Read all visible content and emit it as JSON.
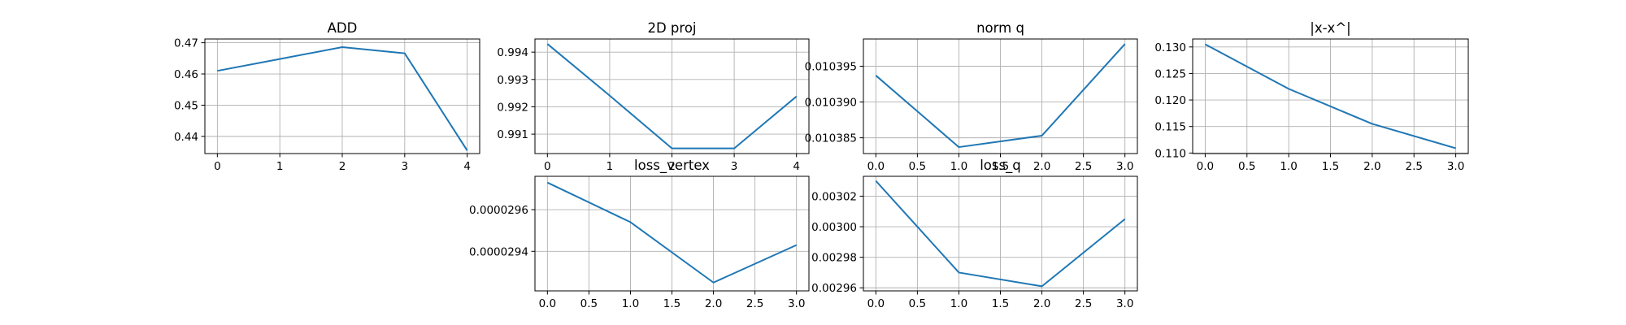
{
  "chart_data": [
    {
      "type": "line",
      "title": "ADD",
      "x": [
        0,
        1,
        2,
        3,
        4
      ],
      "y": [
        0.461,
        0.4648,
        0.4686,
        0.4666,
        0.4355
      ],
      "xlim": [
        -0.2,
        4.2
      ],
      "ylim": [
        0.4345,
        0.4712
      ],
      "xticks": [
        "0",
        "1",
        "2",
        "3",
        "4"
      ],
      "xtick_values": [
        0,
        1,
        2,
        3,
        4
      ],
      "yticks": [
        "0.44",
        "0.45",
        "0.46",
        "0.47"
      ],
      "ytick_values": [
        0.44,
        0.45,
        0.46,
        0.47
      ],
      "grid": true,
      "color": "#1f77b4"
    },
    {
      "type": "line",
      "title": "2D proj",
      "x": [
        0,
        1,
        2,
        3,
        4
      ],
      "y": [
        0.9943,
        0.99241,
        0.99048,
        0.99048,
        0.99238
      ],
      "xlim": [
        -0.2,
        4.2
      ],
      "ylim": [
        0.99029,
        0.99448
      ],
      "xticks": [
        "0",
        "1",
        "2",
        "3",
        "4"
      ],
      "xtick_values": [
        0,
        1,
        2,
        3,
        4
      ],
      "yticks": [
        "0.991",
        "0.992",
        "0.993",
        "0.994"
      ],
      "ytick_values": [
        0.991,
        0.992,
        0.993,
        0.994
      ],
      "grid": true,
      "color": "#1f77b4"
    },
    {
      "type": "line",
      "title": "norm q",
      "x": [
        0,
        1,
        2,
        3
      ],
      "y": [
        0.0103937,
        0.0103837,
        0.0103853,
        0.0103981
      ],
      "xlim": [
        -0.15,
        3.15
      ],
      "ylim": [
        0.0103828,
        0.0103988
      ],
      "xticks": [
        "0.0",
        "0.5",
        "1.0",
        "1.5",
        "2.0",
        "2.5",
        "3.0"
      ],
      "xtick_values": [
        0,
        0.5,
        1,
        1.5,
        2,
        2.5,
        3
      ],
      "yticks": [
        "0.010385",
        "0.010390",
        "0.010395"
      ],
      "ytick_values": [
        0.010385,
        0.01039,
        0.010395
      ],
      "grid": true,
      "color": "#1f77b4"
    },
    {
      "type": "line",
      "title": "|x-x^|",
      "x": [
        0,
        1,
        2,
        3
      ],
      "y": [
        0.1305,
        0.1221,
        0.1155,
        0.1109
      ],
      "xlim": [
        -0.15,
        3.15
      ],
      "ylim": [
        0.1099,
        0.1315
      ],
      "xticks": [
        "0.0",
        "0.5",
        "1.0",
        "1.5",
        "2.0",
        "2.5",
        "3.0"
      ],
      "xtick_values": [
        0,
        0.5,
        1,
        1.5,
        2,
        2.5,
        3
      ],
      "yticks": [
        "0.110",
        "0.115",
        "0.120",
        "0.125",
        "0.130"
      ],
      "ytick_values": [
        0.11,
        0.115,
        0.12,
        0.125,
        0.13
      ],
      "grid": true,
      "color": "#1f77b4"
    },
    {
      "type": "line",
      "title": "loss_vertex",
      "x": [
        0,
        1,
        2,
        3
      ],
      "y": [
        2.973e-05,
        2.954e-05,
        2.925e-05,
        2.943e-05
      ],
      "xlim": [
        -0.15,
        3.15
      ],
      "ylim": [
        2.921e-05,
        2.976e-05
      ],
      "xticks": [
        "0.0",
        "0.5",
        "1.0",
        "1.5",
        "2.0",
        "2.5",
        "3.0"
      ],
      "xtick_values": [
        0,
        0.5,
        1,
        1.5,
        2,
        2.5,
        3
      ],
      "yticks": [
        "0.0000294",
        "0.0000296"
      ],
      "ytick_values": [
        2.94e-05,
        2.96e-05
      ],
      "grid": true,
      "color": "#1f77b4"
    },
    {
      "type": "line",
      "title": "loss_q",
      "x": [
        0,
        1,
        2,
        3
      ],
      "y": [
        0.00303,
        0.00297,
        0.002961,
        0.003005
      ],
      "xlim": [
        -0.15,
        3.15
      ],
      "ylim": [
        0.002958,
        0.003033
      ],
      "xticks": [
        "0.0",
        "0.5",
        "1.0",
        "1.5",
        "2.0",
        "2.5",
        "3.0"
      ],
      "xtick_values": [
        0,
        0.5,
        1,
        1.5,
        2,
        2.5,
        3
      ],
      "yticks": [
        "0.00296",
        "0.00298",
        "0.00300",
        "0.00302"
      ],
      "ytick_values": [
        0.00296,
        0.00298,
        0.003,
        0.00302
      ],
      "grid": true,
      "color": "#1f77b4"
    }
  ]
}
